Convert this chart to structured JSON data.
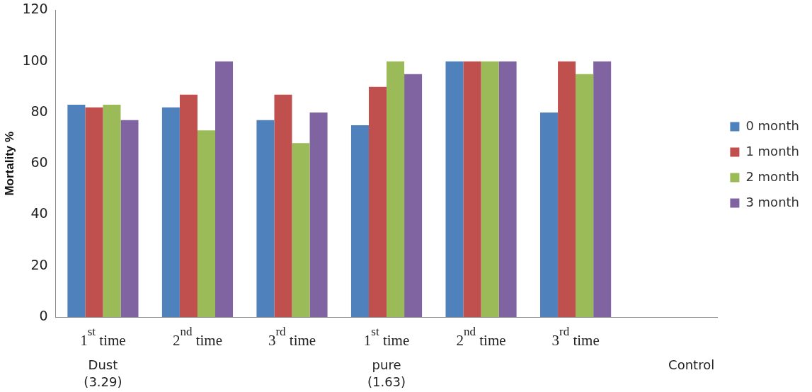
{
  "chart_data": {
    "type": "bar",
    "ylabel": "Mortality %",
    "categories": [
      "1$^{st}$ time",
      "2$^{nd}$ time",
      "3$^{rd}$ time",
      "1$^{st}$ time",
      "2$^{nd}$ time",
      "3$^{rd}$ time",
      null
    ],
    "series": [
      {
        "name": "0 month",
        "color": "#4f81bd",
        "values": [
          83,
          82,
          77,
          75,
          100,
          80,
          null
        ]
      },
      {
        "name": "1 month",
        "color": "#c0504d",
        "values": [
          82,
          87,
          87,
          90,
          100,
          100,
          null
        ]
      },
      {
        "name": "2 month",
        "color": "#9bbb59",
        "values": [
          83,
          73,
          68,
          100,
          100,
          95,
          null
        ]
      },
      {
        "name": "3 month",
        "color": "#8064a2",
        "values": [
          77,
          100,
          80,
          95,
          100,
          100,
          null
        ]
      }
    ],
    "ylim": [
      0,
      120
    ],
    "yticks": [
      0,
      20,
      40,
      60,
      80,
      100,
      120
    ],
    "grid": false,
    "legend": "right",
    "annotations": [
      "Dust\n(3.29)",
      "pure\n(1.63)",
      "Control"
    ]
  }
}
